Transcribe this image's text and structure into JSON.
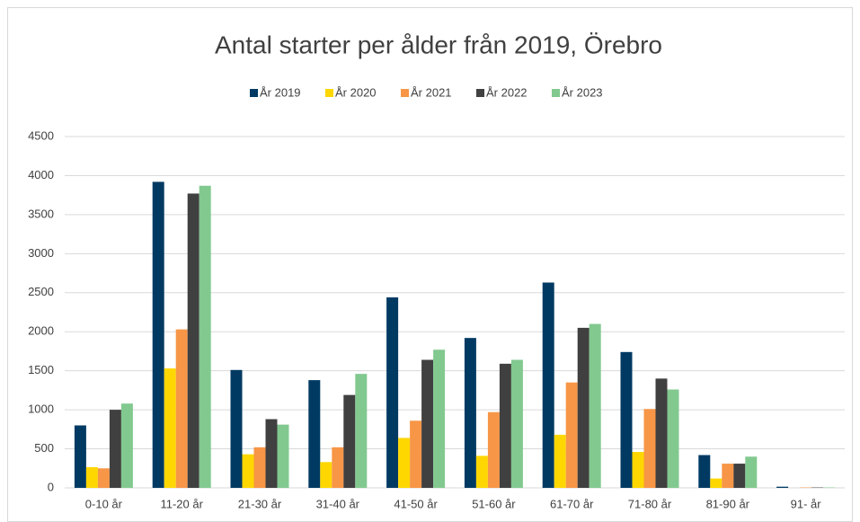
{
  "chart_data": {
    "type": "bar",
    "title": "Antal starter per ålder från 2019, Örebro",
    "categories": [
      "0-10 år",
      "11-20 år",
      "21-30 år",
      "31-40 år",
      "41-50 år",
      "51-60 år",
      "61-70 år",
      "71-80 år",
      "81-90 år",
      "91- år"
    ],
    "series": [
      {
        "name": "År 2019",
        "color": "#003a63",
        "values": [
          800,
          3920,
          1510,
          1380,
          2440,
          1920,
          2630,
          1740,
          420,
          15
        ]
      },
      {
        "name": "År 2020",
        "color": "#ffd700",
        "values": [
          265,
          1530,
          430,
          330,
          640,
          410,
          680,
          460,
          120,
          0
        ]
      },
      {
        "name": "År 2021",
        "color": "#f79646",
        "values": [
          250,
          2030,
          520,
          520,
          860,
          970,
          1350,
          1010,
          310,
          5
        ]
      },
      {
        "name": "År 2022",
        "color": "#404040",
        "values": [
          1000,
          3770,
          880,
          1190,
          1640,
          1590,
          2050,
          1400,
          310,
          5
        ]
      },
      {
        "name": "År 2023",
        "color": "#82c98f",
        "values": [
          1080,
          3870,
          810,
          1460,
          1770,
          1640,
          2100,
          1260,
          400,
          5
        ]
      }
    ],
    "ylim": [
      0,
      4500
    ],
    "yticks": [
      0,
      500,
      1000,
      1500,
      2000,
      2500,
      3000,
      3500,
      4000,
      4500
    ],
    "grid": true,
    "legend": "top"
  }
}
